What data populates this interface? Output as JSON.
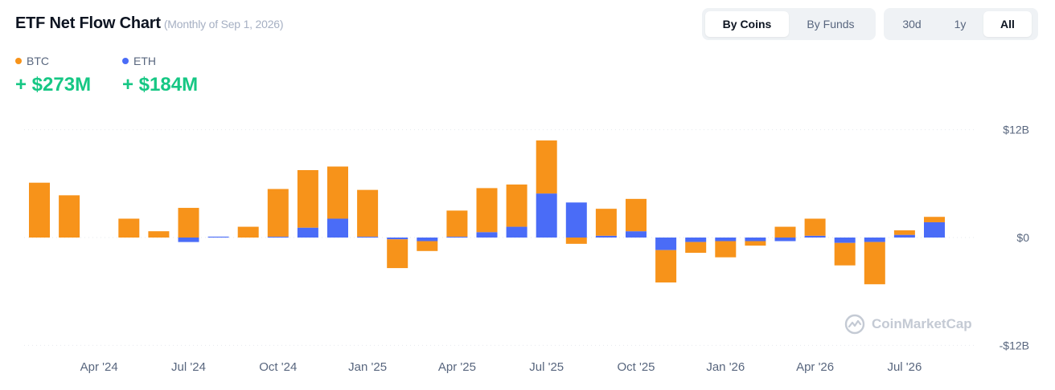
{
  "header": {
    "title": "ETF Net Flow Chart",
    "subtitle": "(Monthly of Sep 1, 2026)"
  },
  "legend": [
    {
      "label": "BTC",
      "value": "+ $273M",
      "color": "#f7931a"
    },
    {
      "label": "ETH",
      "value": "+ $184M",
      "color": "#4a6cf7"
    }
  ],
  "view_toggle": {
    "options": [
      "By Coins",
      "By Funds"
    ],
    "selected": "By Coins"
  },
  "range_toggle": {
    "options": [
      "30d",
      "1y",
      "All"
    ],
    "selected": "All"
  },
  "watermark": "CoinMarketCap",
  "chart_data": {
    "type": "bar",
    "stacked": true,
    "months": [
      "Feb '24",
      "Mar '24",
      "Apr '24",
      "May '24",
      "Jun '24",
      "Jul '24",
      "Aug '24",
      "Sep '24",
      "Oct '24",
      "Nov '24",
      "Dec '24",
      "Jan '25",
      "Feb '25",
      "Mar '25",
      "Apr '25",
      "May '25",
      "Jun '25",
      "Jul '25",
      "Aug '25",
      "Sep '25",
      "Oct '25",
      "Nov '25",
      "Dec '25",
      "Jan '26",
      "Feb '26",
      "Mar '26",
      "Apr '26",
      "May '26",
      "Jun '26",
      "Jul '26",
      "Aug '26"
    ],
    "x_tick_labels": [
      "Apr '24",
      "Jul '24",
      "Oct '24",
      "Jan '25",
      "Apr '25",
      "Jul '25",
      "Oct '25",
      "Jan '26",
      "Apr '26",
      "Jul '26"
    ],
    "y_tick_labels": [
      "$12B",
      "$0",
      "-$12B"
    ],
    "ylim": [
      -12,
      12
    ],
    "unit": "$B",
    "series": [
      {
        "name": "BTC",
        "color": "#f7931a",
        "values": [
          6.1,
          4.7,
          0,
          2.1,
          0.7,
          3.3,
          0,
          1.2,
          5.3,
          6.4,
          5.8,
          5.2,
          -3.2,
          -1.1,
          2.9,
          4.9,
          4.7,
          5.9,
          -0.7,
          3.0,
          3.6,
          -3.6,
          -1.2,
          -1.8,
          -0.5,
          1.2,
          1.9,
          -2.5,
          -4.7,
          0.5,
          0.6
        ]
      },
      {
        "name": "ETH",
        "color": "#4a6cf7",
        "values": [
          0,
          0,
          0,
          0,
          0,
          -0.5,
          0.1,
          0,
          0.1,
          1.1,
          2.1,
          0.1,
          -0.2,
          -0.4,
          0.1,
          0.6,
          1.2,
          4.9,
          3.9,
          0.2,
          0.7,
          -1.4,
          -0.5,
          -0.4,
          -0.4,
          -0.4,
          0.2,
          -0.6,
          -0.5,
          0.3,
          1.7
        ]
      }
    ]
  }
}
